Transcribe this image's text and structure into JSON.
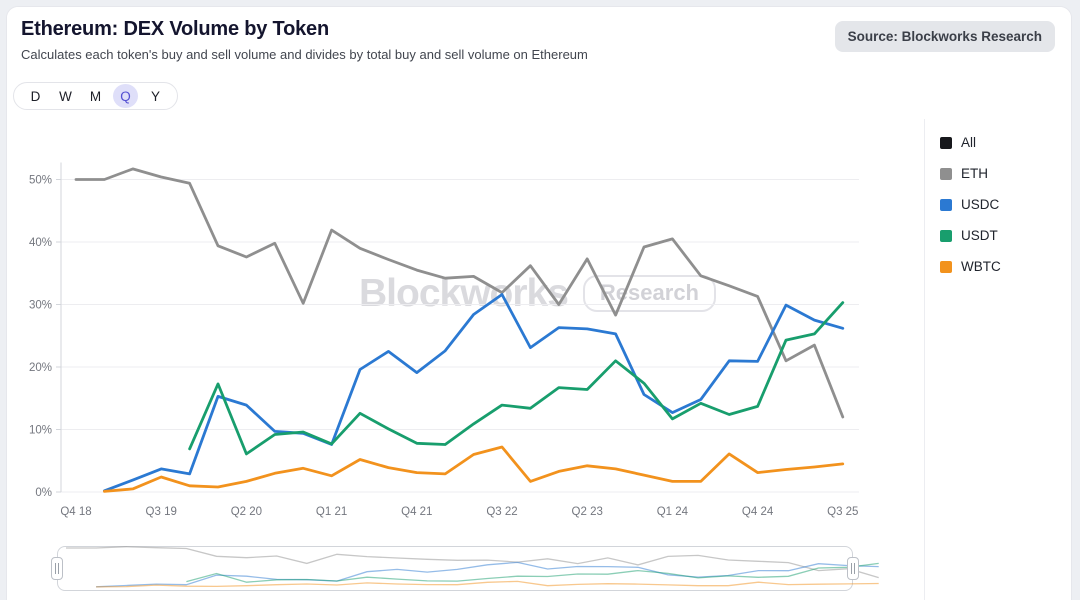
{
  "header": {
    "title": "Ethereum: DEX Volume by Token",
    "subtitle": "Calculates each token's buy and sell volume and divides by total buy and sell volume on Ethereum",
    "source_badge": "Source: Blockworks Research"
  },
  "toolbar": {
    "range_options": [
      "D",
      "W",
      "M",
      "Q",
      "Y"
    ],
    "selected_range": "Q"
  },
  "legend": {
    "position": "right",
    "items": [
      {
        "label": "All",
        "color": "#17181c"
      },
      {
        "label": "ETH",
        "color": "#8f8f8f"
      },
      {
        "label": "USDC",
        "color": "#2b79d2"
      },
      {
        "label": "USDT",
        "color": "#189e6d"
      },
      {
        "label": "WBTC",
        "color": "#f2921d"
      }
    ]
  },
  "watermark": {
    "brand": "Blockworks",
    "sub": "Research"
  },
  "chart_data": {
    "type": "line",
    "title": "Ethereum: DEX Volume by Token",
    "xlabel": "",
    "ylabel": "",
    "ylim": [
      0,
      54
    ],
    "grid": true,
    "legend_position": "right",
    "y_ticks": [
      "0%",
      "10%",
      "20%",
      "30%",
      "40%",
      "50%"
    ],
    "x_tick_labels": [
      "Q4 18",
      "Q3 19",
      "Q2 20",
      "Q1 21",
      "Q4 21",
      "Q3 22",
      "Q2 23",
      "Q1 24",
      "Q4 24",
      "Q3 25"
    ],
    "categories": [
      "Q4 18",
      "Q1 19",
      "Q2 19",
      "Q3 19",
      "Q4 19",
      "Q1 20",
      "Q2 20",
      "Q3 20",
      "Q4 20",
      "Q1 21",
      "Q2 21",
      "Q3 21",
      "Q4 21",
      "Q1 22",
      "Q2 22",
      "Q3 22",
      "Q4 22",
      "Q1 23",
      "Q2 23",
      "Q3 23",
      "Q4 23",
      "Q1 24",
      "Q2 24",
      "Q3 24",
      "Q4 24",
      "Q1 25",
      "Q2 25",
      "Q3 25"
    ],
    "unit": "%",
    "series": [
      {
        "name": "ETH",
        "color": "#8f8f8f",
        "values": [
          50.0,
          50.0,
          51.7,
          50.4,
          49.4,
          39.4,
          37.6,
          39.8,
          30.2,
          41.9,
          39.0,
          37.2,
          35.5,
          34.2,
          34.5,
          31.9,
          36.2,
          30.0,
          37.3,
          28.3,
          39.2,
          40.5,
          34.6,
          33.0,
          31.3,
          21.0,
          23.5,
          12.0
        ]
      },
      {
        "name": "USDC",
        "color": "#2b79d2",
        "values": [
          null,
          0.2,
          1.9,
          3.7,
          2.9,
          15.3,
          13.9,
          9.7,
          9.4,
          7.6,
          19.6,
          22.5,
          19.1,
          22.6,
          28.4,
          31.6,
          23.1,
          26.3,
          26.1,
          25.3,
          15.6,
          12.7,
          14.8,
          21.0,
          20.9,
          29.9,
          27.5,
          26.2
        ]
      },
      {
        "name": "USDT",
        "color": "#189e6d",
        "values": [
          null,
          null,
          null,
          null,
          6.9,
          17.3,
          6.1,
          9.2,
          9.6,
          7.7,
          12.6,
          10.1,
          7.8,
          7.6,
          10.9,
          13.9,
          13.4,
          16.7,
          16.4,
          21.0,
          17.4,
          11.7,
          14.2,
          12.4,
          13.7,
          24.3,
          25.3,
          30.3
        ]
      },
      {
        "name": "WBTC",
        "color": "#f2921d",
        "values": [
          null,
          0.1,
          0.5,
          2.4,
          1.0,
          0.8,
          1.7,
          3.0,
          3.8,
          2.6,
          5.2,
          3.9,
          3.1,
          2.9,
          6.0,
          7.2,
          1.7,
          3.3,
          4.2,
          3.7,
          2.7,
          1.7,
          1.7,
          6.1,
          3.1,
          3.6,
          4.0,
          4.5
        ]
      }
    ],
    "navigator": true
  }
}
